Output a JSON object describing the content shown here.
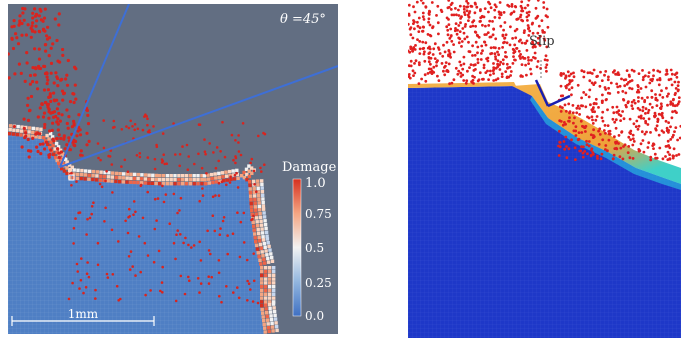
{
  "left_panel": {
    "angle_label": "θ =45°",
    "scale_bar_label": "1mm",
    "colorbar": {
      "title": "Damage",
      "ticks": [
        "1.0",
        "0.75",
        "0.5",
        "0.25",
        "0.0"
      ],
      "colors": [
        "#d7301f",
        "#f4a582",
        "#f2f2f2",
        "#92b6df",
        "#3f70c3"
      ]
    },
    "colors": {
      "background": "#626e82",
      "undamaged_material": "#4f7fc4",
      "crack_lines": "#3e6fd6",
      "particles": "#d8241f"
    }
  },
  "right_panel": {
    "slip_label": "Slip",
    "colors": {
      "material": "#1e38c8",
      "damaged_zone": "#f0a43a",
      "particles": "#e02020",
      "slip_marker": "#1a1fb0"
    }
  }
}
